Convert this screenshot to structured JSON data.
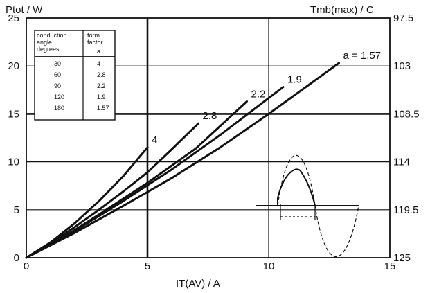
{
  "chart_data": {
    "type": "line",
    "ylabel_left": "Ptot / W",
    "ylabel_right": "Tmb(max) / C",
    "xlabel": "IT(AV) / A",
    "xlim": [
      0,
      15
    ],
    "ylim": [
      0,
      25
    ],
    "x_ticks": [
      "0",
      "5",
      "10",
      "15"
    ],
    "y_ticks_left": [
      "0",
      "5",
      "10",
      "15",
      "20",
      "25"
    ],
    "y_ticks_right": [
      "125",
      "119.5",
      "114",
      "108.5",
      "103",
      "97.5"
    ],
    "grid": true,
    "series": [
      {
        "name": "4",
        "label_prefix": "",
        "points": [
          [
            0,
            0
          ],
          [
            1,
            1.6
          ],
          [
            2,
            3.6
          ],
          [
            3,
            5.9
          ],
          [
            4,
            8.5
          ],
          [
            5,
            11.5
          ]
        ]
      },
      {
        "name": "2.8",
        "label_prefix": "",
        "points": [
          [
            0,
            0
          ],
          [
            1,
            1.5
          ],
          [
            2,
            3.2
          ],
          [
            3,
            5.0
          ],
          [
            4,
            6.9
          ],
          [
            5,
            8.9
          ],
          [
            6,
            11.3
          ],
          [
            7.1,
            14.0
          ]
        ]
      },
      {
        "name": "2.2",
        "label_prefix": "",
        "points": [
          [
            0,
            0
          ],
          [
            1,
            1.4
          ],
          [
            2,
            2.9
          ],
          [
            3,
            4.5
          ],
          [
            5,
            7.8
          ],
          [
            7,
            11.4
          ],
          [
            9.1,
            16.3
          ]
        ]
      },
      {
        "name": "1.9",
        "label_prefix": "",
        "points": [
          [
            0,
            0
          ],
          [
            1,
            1.35
          ],
          [
            2,
            2.8
          ],
          [
            4,
            5.9
          ],
          [
            6,
            9.2
          ],
          [
            8,
            12.8
          ],
          [
            10.6,
            17.8
          ]
        ]
      },
      {
        "name": "1.57",
        "label_prefix": "a = ",
        "points": [
          [
            0,
            0
          ],
          [
            1,
            1.3
          ],
          [
            2,
            2.6
          ],
          [
            4,
            5.4
          ],
          [
            6,
            8.3
          ],
          [
            8,
            11.5
          ],
          [
            10,
            15.0
          ],
          [
            12.9,
            20.3
          ]
        ]
      }
    ],
    "inset_table": {
      "headers": [
        {
          "line1": "conduction",
          "line2": "angle",
          "line3": "degrees"
        },
        {
          "line1": "form",
          "line2": "factor",
          "line3": "a"
        }
      ],
      "rows": [
        [
          "30",
          "4"
        ],
        [
          "60",
          "2.8"
        ],
        [
          "90",
          "2.2"
        ],
        [
          "120",
          "1.9"
        ],
        [
          "180",
          "1.57"
        ]
      ]
    },
    "colors": {
      "line": "#111111",
      "grid": "#111111",
      "background": "#ffffff"
    }
  }
}
